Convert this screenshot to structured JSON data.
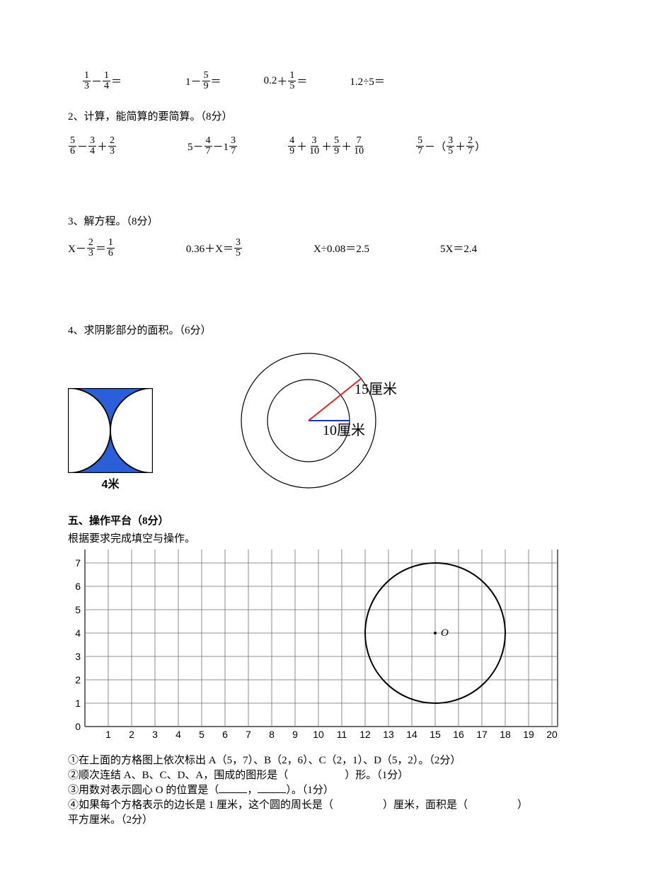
{
  "row1": {
    "e1a": "1",
    "e1b": "3",
    "e1c": "1",
    "e1d": "4",
    "e2a": "5",
    "e2b": "9",
    "e3": "0.2",
    "e3a": "1",
    "e3b": "5",
    "e4": "1.2÷5＝"
  },
  "q2": {
    "title": "2、计算，能简算的要简算。（8分）",
    "a1": "5",
    "a2": "6",
    "a3": "3",
    "a4": "4",
    "a5": "2",
    "a6": "3",
    "b1": "4",
    "b2": "7",
    "b3": "3",
    "b4": "7",
    "c1": "4",
    "c2": "9",
    "c3": "3",
    "c4": "10",
    "c5": "5",
    "c6": "9",
    "c7": "7",
    "c8": "10",
    "d1": "5",
    "d2": "7",
    "d3": "3",
    "d4": "5",
    "d5": "2",
    "d6": "7"
  },
  "q3": {
    "title": "3、解方程。（8分）",
    "a1": "2",
    "a2": "3",
    "a3": "1",
    "a4": "6",
    "b": "0.36＋X＝",
    "b1": "3",
    "b2": "5",
    "c": "X÷0.08＝2.5",
    "d": "5X＝2.4"
  },
  "q4": {
    "title": "4、求阴影部分的面积。（6分）",
    "label1": "4米",
    "outer": "15厘米",
    "inner": "10厘米",
    "fig1_fill": "#2b5fd9",
    "line_red": "#e6241e",
    "line_blue": "#1633c2"
  },
  "q5": {
    "title": "五、操作平台（8分）",
    "sub": "根据要求完成填空与操作。",
    "grid_stroke": "#6f6f6f",
    "o_label": "O",
    "p1": "①在上面的方格图上依次标出 A（5，7）、B（2，6）、C（2，1）、D（5，2）。（2分）",
    "p2a": "②顺次连结 A、B、C、D、A，围成的图形是（",
    "p2b": "）形。（1分）",
    "p3a": "③用数对表示圆心 O 的位置是（",
    "p3b": "，",
    "p3c": "）。（1分）",
    "p4a": "④如果每个方格表示的边长是 1 厘米，这个圆的周长是（",
    "p4b": "）厘米，面积是（",
    "p4c": "）",
    "p4d": "平方厘米。（2分）"
  }
}
